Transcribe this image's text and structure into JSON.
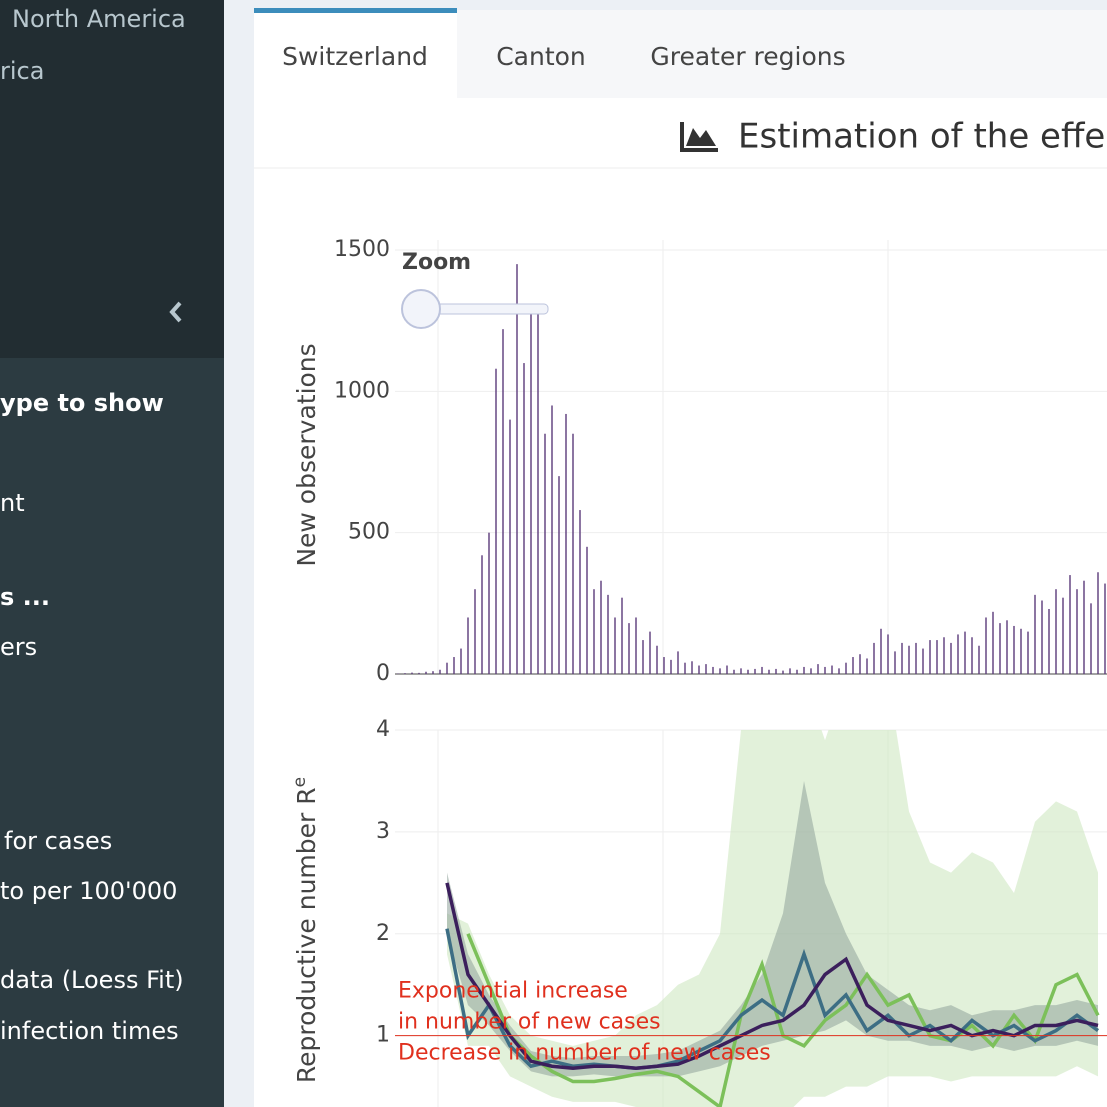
{
  "sidebar": {
    "items": [
      "North America",
      "rica",
      "ype to show",
      "nt",
      "s ...",
      "ers",
      "for cases",
      "to per 100'000",
      "data (Loess Fit)",
      "infection times"
    ]
  },
  "tabs": [
    "Switzerland",
    "Canton",
    "Greater regions"
  ],
  "title": "Estimation of the effec",
  "chart_data": [
    {
      "type": "bar",
      "ylabel": "New observations",
      "zoom_label": "Zoom",
      "color": "#5b3a7a",
      "grid": true,
      "ylim": [
        0,
        1500
      ],
      "yticks": [
        0,
        500,
        1000,
        1500
      ],
      "values": [
        2,
        3,
        5,
        4,
        8,
        10,
        15,
        40,
        60,
        90,
        200,
        300,
        420,
        500,
        1080,
        1220,
        900,
        1450,
        1100,
        1280,
        1300,
        850,
        950,
        700,
        920,
        850,
        580,
        450,
        300,
        330,
        280,
        200,
        270,
        180,
        200,
        120,
        150,
        100,
        60,
        50,
        80,
        40,
        45,
        30,
        35,
        25,
        20,
        30,
        15,
        20,
        15,
        18,
        25,
        15,
        18,
        12,
        20,
        15,
        25,
        20,
        35,
        25,
        30,
        20,
        40,
        60,
        70,
        55,
        110,
        160,
        140,
        80,
        110,
        100,
        110,
        90,
        120,
        120,
        130,
        110,
        140,
        150,
        130,
        100,
        200,
        220,
        180,
        190,
        170,
        160,
        150,
        280,
        260,
        230,
        300,
        270,
        350,
        300,
        330,
        250,
        360,
        320
      ]
    },
    {
      "type": "line",
      "ylabel": "Reproductive number R",
      "ylabel_sub": "e",
      "grid": true,
      "ylim": [
        0.3,
        4
      ],
      "yticks": [
        1,
        2,
        3,
        4
      ],
      "threshold": 1,
      "annotations": [
        "Exponential increase",
        "in number of new cases",
        "Decrease in number of new cases"
      ],
      "x": [
        7,
        10,
        13,
        16,
        19,
        22,
        25,
        28,
        31,
        34,
        37,
        40,
        43,
        46,
        49,
        52,
        55,
        58,
        61,
        64,
        67,
        70,
        73,
        76,
        79,
        82,
        85,
        88,
        91,
        94,
        97,
        100
      ],
      "bands": [
        {
          "color": "#cfe8c2",
          "low": [
            1.8,
            0.9,
            0.9,
            0.6,
            0.5,
            0.4,
            0.35,
            0.35,
            0.35,
            0.3,
            0.3,
            0.2,
            0.1,
            0.1,
            0.1,
            0.1,
            0.2,
            0.4,
            0.4,
            0.5,
            0.5,
            0.6,
            0.6,
            0.6,
            0.55,
            0.6,
            0.6,
            0.6,
            0.6,
            0.6,
            0.7,
            0.6
          ],
          "high": [
            2.2,
            2.1,
            1.6,
            1.2,
            1.0,
            0.95,
            0.9,
            0.95,
            1.0,
            1.2,
            1.3,
            1.5,
            1.6,
            2.0,
            4.0,
            4.5,
            4.5,
            4.5,
            3.9,
            4.5,
            4.5,
            4.5,
            3.2,
            2.7,
            2.6,
            2.8,
            2.7,
            2.4,
            3.1,
            3.3,
            3.2,
            2.6
          ]
        },
        {
          "color": "#8fa39a",
          "low": [
            2.0,
            1.3,
            1.1,
            0.85,
            0.65,
            0.6,
            0.6,
            0.62,
            0.6,
            0.6,
            0.6,
            0.6,
            0.65,
            0.7,
            0.8,
            0.9,
            0.95,
            1.0,
            1.05,
            1.15,
            1.0,
            0.95,
            0.95,
            0.9,
            0.9,
            0.85,
            0.9,
            0.85,
            0.9,
            0.9,
            0.95,
            0.9
          ],
          "high": [
            2.6,
            1.8,
            1.4,
            1.1,
            0.85,
            0.8,
            0.78,
            0.8,
            0.8,
            0.8,
            0.82,
            0.85,
            0.95,
            1.05,
            1.3,
            1.6,
            2.2,
            3.5,
            2.5,
            2.0,
            1.6,
            1.45,
            1.3,
            1.25,
            1.3,
            1.2,
            1.25,
            1.25,
            1.3,
            1.3,
            1.35,
            1.3
          ]
        }
      ],
      "series": [
        {
          "color": "#7cc05a",
          "values": [
            null,
            2.0,
            1.5,
            1.0,
            0.8,
            0.65,
            0.55,
            0.55,
            0.58,
            0.62,
            0.65,
            0.6,
            0.45,
            0.3,
            1.2,
            1.7,
            1.0,
            0.9,
            1.15,
            1.3,
            1.6,
            1.3,
            1.4,
            1.0,
            0.95,
            1.1,
            0.9,
            1.2,
            0.95,
            1.5,
            1.6,
            1.2
          ]
        },
        {
          "color": "#3d6e84",
          "values": [
            2.05,
            1.0,
            1.3,
            0.9,
            0.7,
            0.75,
            0.7,
            0.72,
            0.7,
            0.68,
            0.7,
            0.75,
            0.85,
            0.95,
            1.2,
            1.35,
            1.2,
            1.8,
            1.2,
            1.4,
            1.05,
            1.2,
            1.0,
            1.1,
            0.95,
            1.15,
            1.0,
            1.1,
            0.95,
            1.05,
            1.2,
            1.05
          ]
        },
        {
          "color": "#3b1f5c",
          "values": [
            2.5,
            1.6,
            1.3,
            1.0,
            0.75,
            0.7,
            0.68,
            0.7,
            0.7,
            0.68,
            0.7,
            0.72,
            0.8,
            0.9,
            1.0,
            1.1,
            1.15,
            1.3,
            1.6,
            1.75,
            1.3,
            1.15,
            1.1,
            1.05,
            1.1,
            1.0,
            1.05,
            1.0,
            1.1,
            1.1,
            1.15,
            1.1
          ]
        }
      ]
    }
  ]
}
